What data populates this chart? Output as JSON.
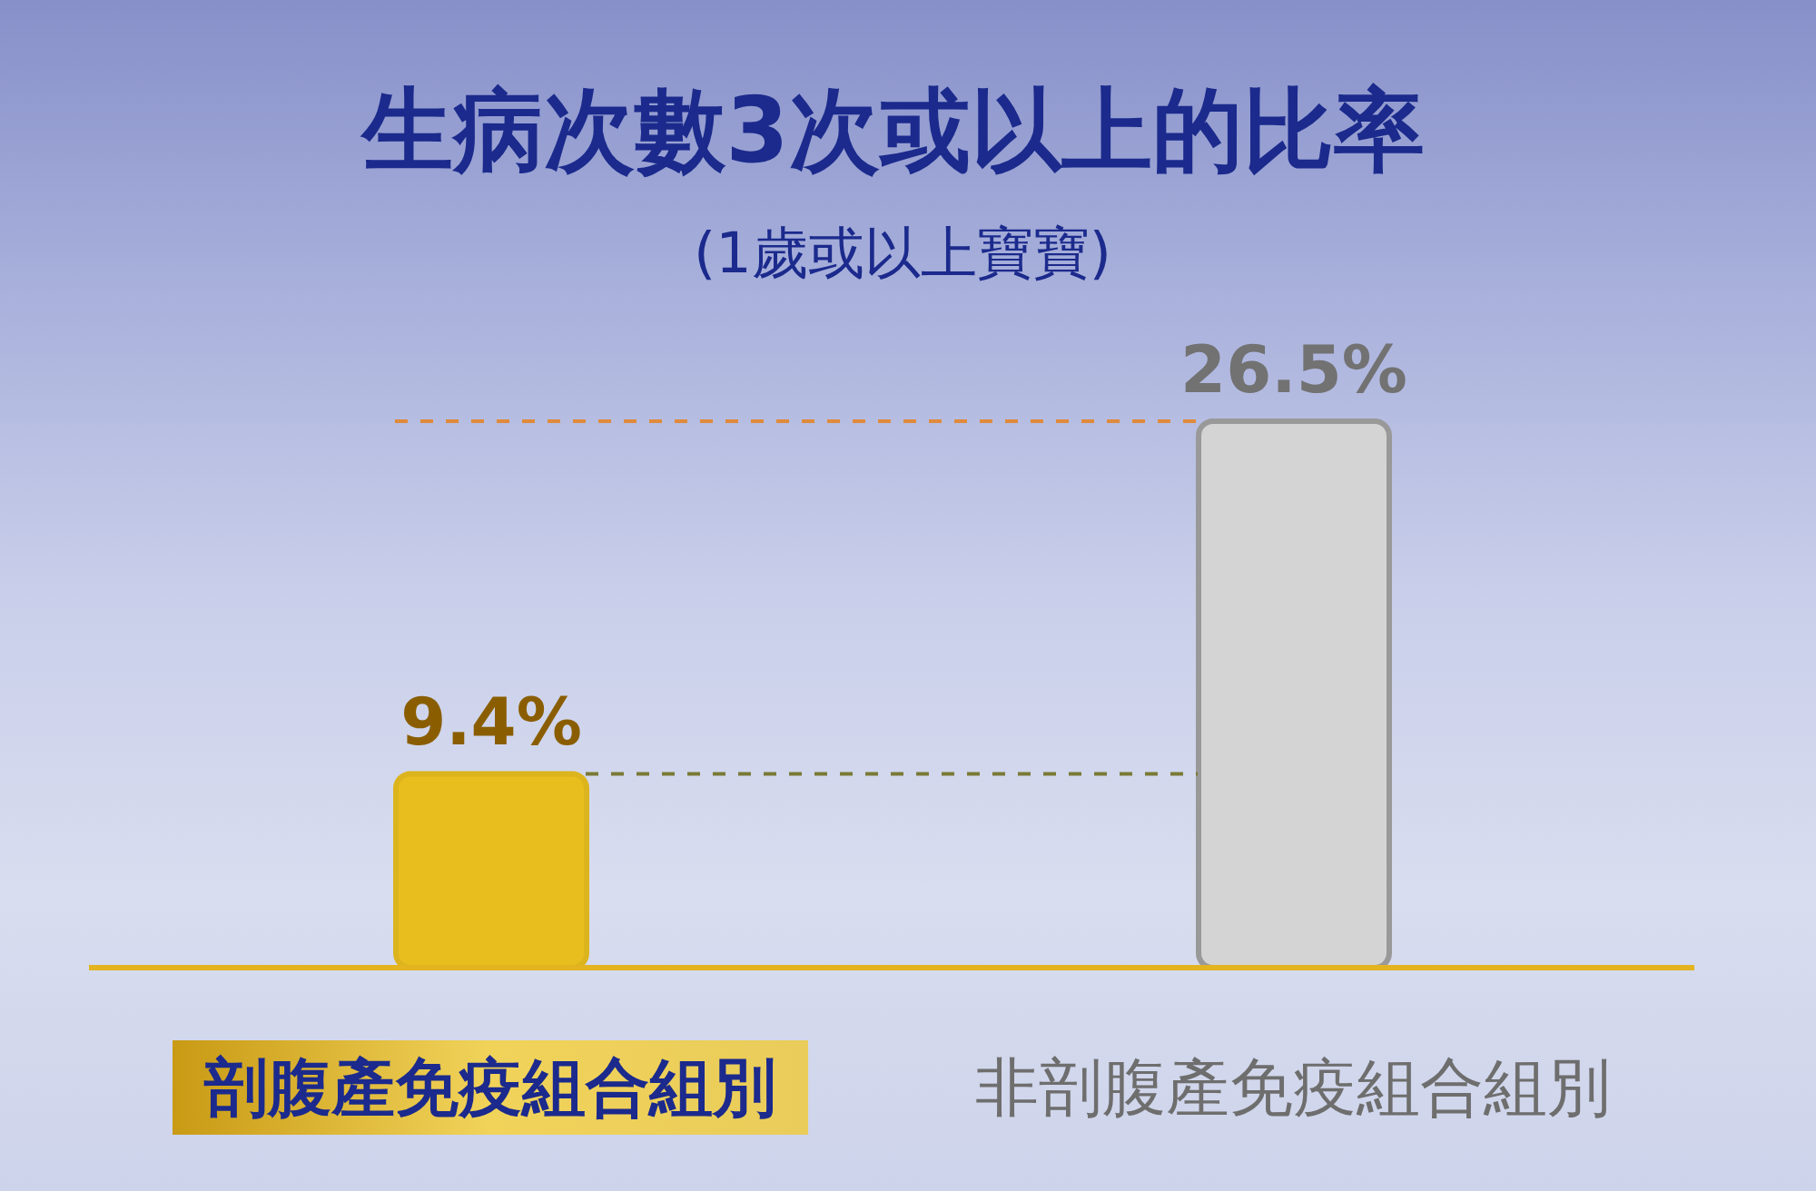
{
  "chart_data": {
    "type": "bar",
    "title": "生病次數3次或以上的比率",
    "subtitle": "(1歲或以上寶寶)",
    "categories": [
      "剖腹產免疫組合組別",
      "非剖腹產免疫組合組別"
    ],
    "values": [
      9.4,
      26.5
    ],
    "colors": [
      "#e8bd1e",
      "#d4d4d4"
    ],
    "value_labels": [
      "9.4%",
      "26.5%"
    ],
    "ref_lines": [
      {
        "axis": "y",
        "value": 26.5,
        "color": "#e08a3c",
        "line_style": "dashed"
      },
      {
        "axis": "y",
        "value": 9.4,
        "color": "#7a7a36",
        "line_style": "dashed"
      }
    ]
  }
}
